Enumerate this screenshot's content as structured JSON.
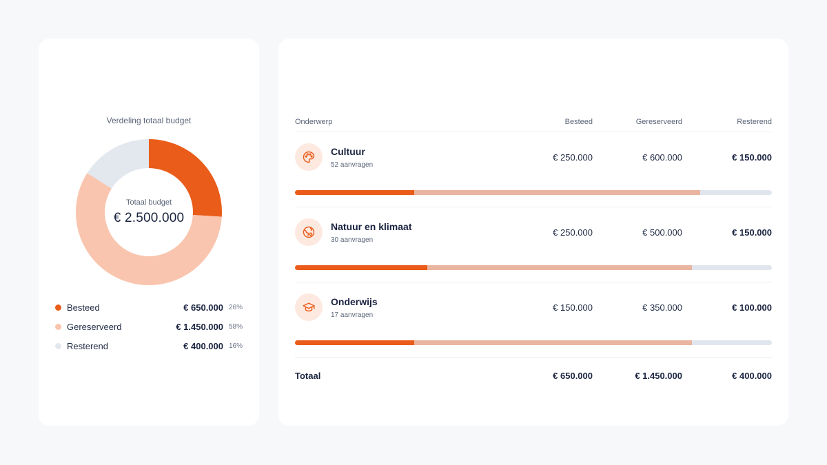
{
  "colors": {
    "spent": "#ea5c1a",
    "reserved": "#f9c5ae",
    "remaining": "#e3e8ef",
    "reserved_bar": "#e9b5a0",
    "remaining_bar": "#e1e6ee"
  },
  "budget_card": {
    "title": "Verdeling totaal budget",
    "center_label": "Totaal budget",
    "center_value": "€ 2.500.000",
    "legend": [
      {
        "label": "Besteed",
        "amount": "€ 650.000",
        "pct": "26%",
        "color_key": "spent"
      },
      {
        "label": "Gereserveerd",
        "amount": "€ 1.450.000",
        "pct": "58%",
        "color_key": "reserved"
      },
      {
        "label": "Resterend",
        "amount": "€ 400.000",
        "pct": "16%",
        "color_key": "remaining"
      }
    ]
  },
  "chart_data": {
    "type": "pie",
    "title": "Verdeling totaal budget",
    "categories": [
      "Besteed",
      "Gereserveerd",
      "Resterend"
    ],
    "values": [
      650000,
      1450000,
      400000
    ],
    "percentages": [
      26,
      58,
      16
    ],
    "total": 2500000
  },
  "table": {
    "headers": {
      "subject": "Onderwerp",
      "spent": "Besteed",
      "reserved": "Gereserveerd",
      "remaining": "Resterend"
    },
    "rows": [
      {
        "name": "Cultuur",
        "requests": "52 aanvragen",
        "icon": "palette-icon",
        "spent": "€ 250.000",
        "reserved": "€ 600.000",
        "remaining": "€ 150.000",
        "spent_share": 0.25,
        "reserved_share": 0.6
      },
      {
        "name": "Natuur en klimaat",
        "requests": "30 aanvragen",
        "icon": "globe-icon",
        "spent": "€ 250.000",
        "reserved": "€ 500.000",
        "remaining": "€ 150.000",
        "spent_share": 0.278,
        "reserved_share": 0.555
      },
      {
        "name": "Onderwijs",
        "requests": "17 aanvragen",
        "icon": "graduation-cap-icon",
        "spent": "€ 150.000",
        "reserved": "€ 350.000",
        "remaining": "€ 100.000",
        "spent_share": 0.25,
        "reserved_share": 0.583
      }
    ],
    "total": {
      "label": "Totaal",
      "spent": "€ 650.000",
      "reserved": "€ 1.450.000",
      "remaining": "€ 400.000"
    }
  }
}
